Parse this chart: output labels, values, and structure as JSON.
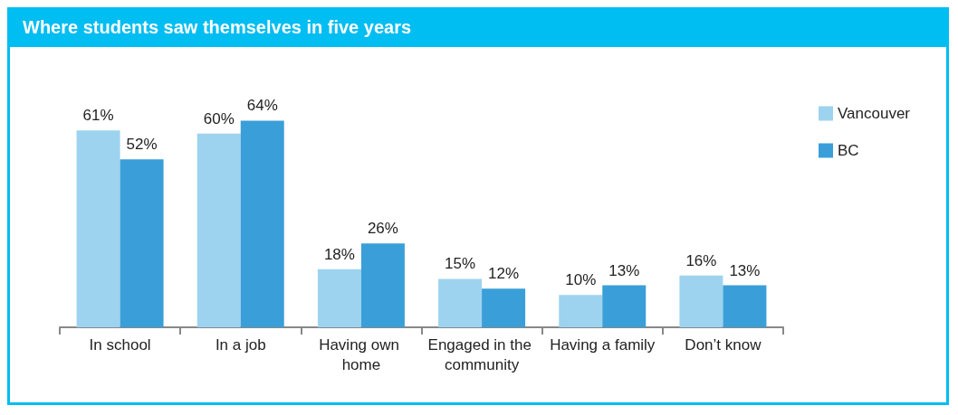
{
  "chart_data": {
    "type": "bar",
    "title": "Where students saw themselves in five years",
    "categories": [
      "In school",
      "In a job",
      "Having own home",
      "Engaged in the community",
      "Having a family",
      "Don’t know"
    ],
    "series": [
      {
        "name": "Vancouver",
        "color": "#9dd3ef",
        "values": [
          61,
          60,
          18,
          15,
          10,
          16
        ],
        "value_labels": [
          "61%",
          "60%",
          "18%",
          "15%",
          "10%",
          "16%"
        ]
      },
      {
        "name": "BC",
        "color": "#3a9fd8",
        "values": [
          52,
          64,
          26,
          12,
          13,
          13
        ],
        "value_labels": [
          "52%",
          "64%",
          "26%",
          "12%",
          "13%",
          "13%"
        ]
      }
    ],
    "legend": "right"
  }
}
